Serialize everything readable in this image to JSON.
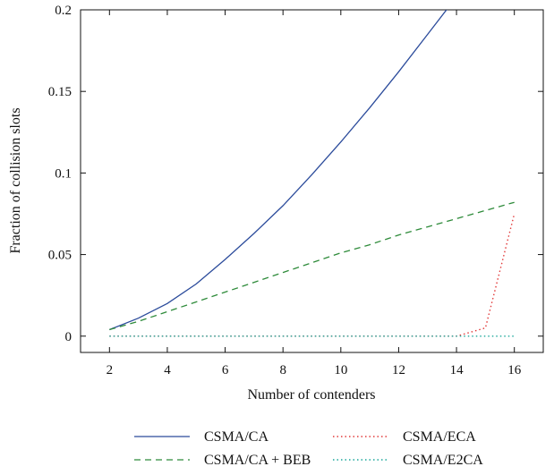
{
  "chart_data": {
    "type": "line",
    "title": "",
    "xlabel": "Number of contenders",
    "ylabel": "Fraction of collision slots",
    "xlim": [
      1,
      17
    ],
    "ylim": [
      -0.01,
      0.2
    ],
    "xticks": [
      2,
      4,
      6,
      8,
      10,
      12,
      14,
      16
    ],
    "yticks": [
      0,
      0.05,
      0.1,
      0.15,
      0.2
    ],
    "ytick_labels": [
      "0",
      "0.05",
      "0.1",
      "0.15",
      "0.2"
    ],
    "grid": false,
    "legend_position": "bottom",
    "x": [
      2,
      3,
      4,
      5,
      6,
      7,
      8,
      9,
      10,
      11,
      12,
      13,
      14,
      15,
      16
    ],
    "series": [
      {
        "name": "CSMA/CA",
        "color": "#2b4b9b",
        "dash": "solid",
        "values": [
          0.004,
          0.011,
          0.02,
          0.032,
          0.047,
          0.063,
          0.08,
          0.099,
          0.119,
          0.14,
          0.162,
          0.185,
          0.208,
          null,
          null
        ]
      },
      {
        "name": "CSMA/CA + BEB",
        "color": "#2e8b3a",
        "dash": "dashed",
        "values": [
          0.004,
          0.009,
          0.015,
          0.021,
          0.027,
          0.033,
          0.039,
          0.045,
          0.051,
          0.056,
          0.062,
          0.067,
          0.072,
          0.077,
          0.082
        ]
      },
      {
        "name": "CSMA/ECA",
        "color": "#e23b3b",
        "dash": "dotted",
        "values": [
          0,
          0,
          0,
          0,
          0,
          0,
          0,
          0,
          0,
          0,
          0,
          0,
          0,
          0.005,
          0.075
        ]
      },
      {
        "name": "CSMA/E2CA",
        "color": "#1aa79a",
        "dash": "dotted",
        "values": [
          0,
          0,
          0,
          0,
          0,
          0,
          0,
          0,
          0,
          0,
          0,
          0,
          0,
          0,
          0
        ]
      }
    ]
  }
}
